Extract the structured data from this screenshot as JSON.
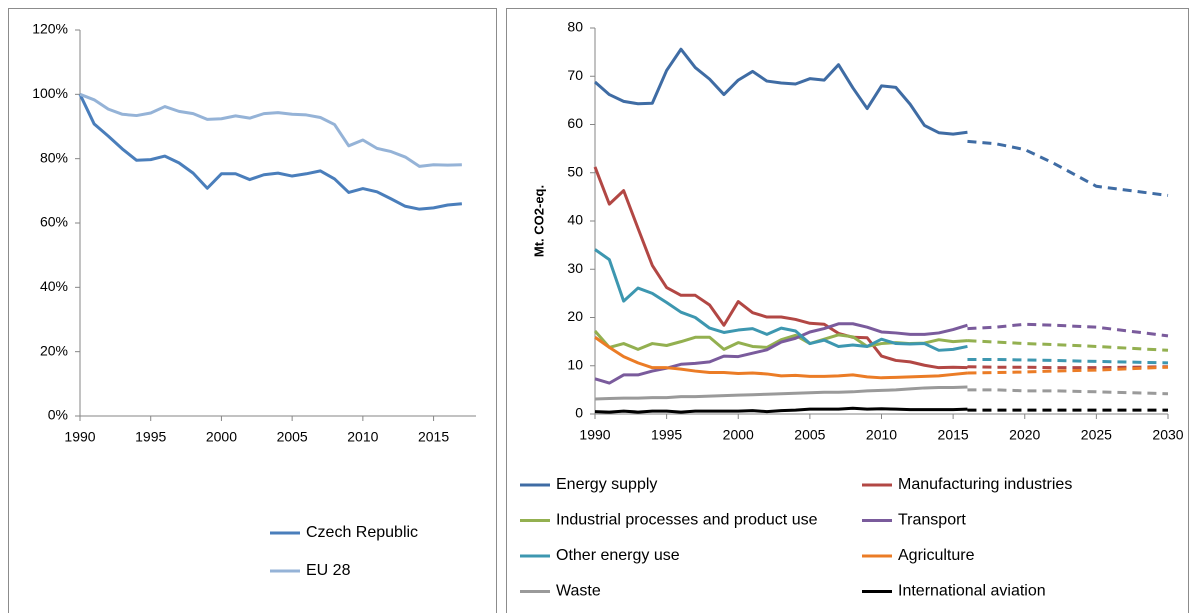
{
  "chart_data": [
    {
      "type": "line",
      "x": [
        1990,
        1991,
        1992,
        1993,
        1994,
        1995,
        1996,
        1997,
        1998,
        1999,
        2000,
        2001,
        2002,
        2003,
        2004,
        2005,
        2006,
        2007,
        2008,
        2009,
        2010,
        2011,
        2012,
        2013,
        2014,
        2015,
        2016,
        2017
      ],
      "xlim": [
        1990,
        2018
      ],
      "xticks": [
        1990,
        1995,
        2000,
        2005,
        2010,
        2015
      ],
      "ylim": [
        0,
        120
      ],
      "yticks": [
        {
          "value": 0,
          "label": "0%"
        },
        {
          "value": 20,
          "label": "20%"
        },
        {
          "value": 40,
          "label": "40%"
        },
        {
          "value": 60,
          "label": "60%"
        },
        {
          "value": 80,
          "label": "80%"
        },
        {
          "value": 100,
          "label": "100%"
        },
        {
          "value": 120,
          "label": "120%"
        }
      ],
      "series": [
        {
          "name": "Czech Republic",
          "color": "#4a7ebb",
          "values": [
            100,
            90.8,
            87,
            83,
            79.5,
            79.7,
            80.8,
            78.7,
            75.5,
            70.8,
            75.3,
            75.3,
            73.5,
            75.0,
            75.5,
            74.6,
            75.3,
            76.2,
            73.7,
            69.5,
            70.7,
            69.7,
            67.5,
            65.2,
            64.3,
            64.7,
            65.6,
            66.0
          ]
        },
        {
          "name": "EU 28",
          "color": "#95b3d7",
          "values": [
            100,
            98.3,
            95.4,
            93.8,
            93.4,
            94.2,
            96.2,
            94.7,
            94.0,
            92.2,
            92.4,
            93.3,
            92.6,
            94.0,
            94.3,
            93.8,
            93.6,
            92.8,
            90.6,
            84.0,
            85.8,
            83.2,
            82.2,
            80.5,
            77.6,
            78.1,
            78.0,
            78.1
          ]
        }
      ]
    },
    {
      "type": "line",
      "y_label": "Mt. CO2-eq.",
      "x": [
        1990,
        1991,
        1992,
        1993,
        1994,
        1995,
        1996,
        1997,
        1998,
        1999,
        2000,
        2001,
        2002,
        2003,
        2004,
        2005,
        2006,
        2007,
        2008,
        2009,
        2010,
        2011,
        2012,
        2013,
        2014,
        2015,
        2016
      ],
      "projection_x": [
        2016,
        2018,
        2020,
        2022,
        2025,
        2030
      ],
      "xlim": [
        1990,
        2030
      ],
      "xticks": [
        1990,
        1995,
        2000,
        2005,
        2010,
        2015,
        2020,
        2025,
        2030
      ],
      "ylim": [
        0,
        80
      ],
      "yticks": [
        0,
        10,
        20,
        30,
        40,
        50,
        60,
        70,
        80
      ],
      "series": [
        {
          "name": "Energy supply",
          "color": "#3f6ca4",
          "values": [
            68.8,
            66.2,
            64.8,
            64.3,
            64.4,
            71.2,
            75.6,
            71.8,
            69.4,
            66.2,
            69.2,
            71.0,
            69.0,
            68.6,
            68.4,
            69.5,
            69.2,
            72.4,
            67.6,
            63.3,
            68.0,
            67.7,
            64.2,
            59.8,
            58.3,
            58.0,
            58.4
          ],
          "projection": [
            56.5,
            56.0,
            54.8,
            52.0,
            47.2,
            45.3
          ]
        },
        {
          "name": "Manufacturing industries",
          "color": "#b24744",
          "values": [
            51.2,
            43.5,
            46.3,
            38.5,
            30.8,
            26.2,
            24.6,
            24.6,
            22.6,
            18.4,
            23.3,
            21.0,
            20.1,
            20.1,
            19.6,
            18.8,
            18.6,
            16.7,
            15.9,
            15.8,
            12.0,
            11.1,
            10.8,
            10.1,
            9.6,
            9.7,
            9.6
          ],
          "projection": [
            9.8,
            9.7,
            9.7,
            9.6,
            9.6,
            9.8
          ]
        },
        {
          "name": "Industrial processes and product use",
          "color": "#93b050",
          "values": [
            17.2,
            13.8,
            14.6,
            13.4,
            14.6,
            14.2,
            15.0,
            15.9,
            15.9,
            13.4,
            14.8,
            14.0,
            13.8,
            15.4,
            16.3,
            14.6,
            15.5,
            16.4,
            16.0,
            14.0,
            14.6,
            14.8,
            14.6,
            14.7,
            15.4,
            15.0,
            15.2
          ],
          "projection": [
            15.2,
            14.9,
            14.6,
            14.4,
            14.0,
            13.2
          ]
        },
        {
          "name": "Transport",
          "color": "#7a5b9c",
          "values": [
            7.3,
            6.4,
            8.1,
            8.1,
            8.9,
            9.5,
            10.3,
            10.5,
            10.8,
            12.0,
            11.9,
            12.6,
            13.3,
            14.9,
            15.7,
            17.0,
            17.7,
            18.7,
            18.7,
            18.0,
            17.0,
            16.8,
            16.5,
            16.5,
            16.8,
            17.5,
            18.4
          ],
          "projection": [
            17.7,
            18.0,
            18.6,
            18.4,
            18.0,
            16.2
          ]
        },
        {
          "name": "Other energy use",
          "color": "#3d97b0",
          "values": [
            34.1,
            32.0,
            23.4,
            26.1,
            25.0,
            23.1,
            21.1,
            20.0,
            17.8,
            16.9,
            17.4,
            17.7,
            16.5,
            17.8,
            17.2,
            14.6,
            15.3,
            14.0,
            14.3,
            14.0,
            15.5,
            14.6,
            14.5,
            14.6,
            13.2,
            13.4,
            14.0
          ],
          "projection": [
            11.3,
            11.3,
            11.2,
            11.1,
            10.9,
            10.6
          ]
        },
        {
          "name": "Agriculture",
          "color": "#eb7c26",
          "values": [
            15.9,
            13.8,
            11.9,
            10.6,
            9.6,
            9.6,
            9.3,
            8.9,
            8.6,
            8.6,
            8.4,
            8.5,
            8.3,
            7.9,
            8.0,
            7.8,
            7.8,
            7.9,
            8.1,
            7.7,
            7.5,
            7.6,
            7.7,
            7.8,
            7.9,
            8.2,
            8.5
          ],
          "projection": [
            8.5,
            8.6,
            8.7,
            8.9,
            9.1,
            9.7
          ]
        },
        {
          "name": "Waste",
          "color": "#9a9a9a",
          "values": [
            3.1,
            3.2,
            3.3,
            3.3,
            3.4,
            3.4,
            3.6,
            3.6,
            3.7,
            3.8,
            3.9,
            4.0,
            4.1,
            4.2,
            4.3,
            4.4,
            4.5,
            4.5,
            4.6,
            4.8,
            4.9,
            5.0,
            5.2,
            5.4,
            5.5,
            5.5,
            5.6
          ],
          "projection": [
            5.0,
            5.0,
            4.8,
            4.8,
            4.6,
            4.2
          ]
        },
        {
          "name": "International aviation",
          "color": "#000000",
          "values": [
            0.5,
            0.4,
            0.6,
            0.4,
            0.6,
            0.6,
            0.4,
            0.6,
            0.6,
            0.6,
            0.6,
            0.7,
            0.5,
            0.7,
            0.8,
            1.0,
            1.0,
            1.0,
            1.2,
            1.0,
            1.1,
            1.0,
            0.9,
            0.9,
            0.9,
            0.9,
            1.0
          ],
          "projection": [
            0.8,
            0.8,
            0.8,
            0.8,
            0.8,
            0.8
          ]
        }
      ]
    }
  ]
}
